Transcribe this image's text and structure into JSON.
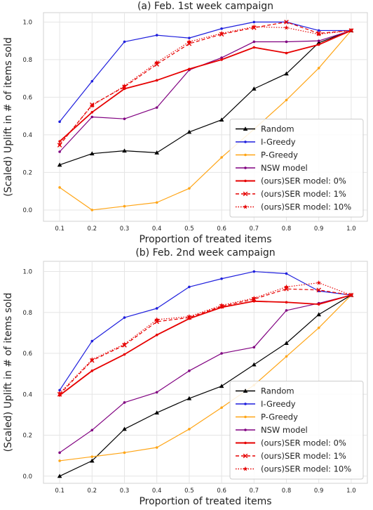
{
  "chart_data": [
    {
      "type": "line",
      "title": "(a) Feb. 1st week campaign",
      "xlabel": "Proportion of treated items",
      "ylabel": "(Scaled) Uplift in # of items sold",
      "x": [
        0.1,
        0.2,
        0.3,
        0.4,
        0.5,
        0.6,
        0.7,
        0.8,
        0.9,
        1.0
      ],
      "xticks": [
        "0.1",
        "0.2",
        "0.3",
        "0.4",
        "0.5",
        "0.6",
        "0.7",
        "0.8",
        "0.9",
        "1.0"
      ],
      "yticks": [
        "0.0",
        "0.2",
        "0.4",
        "0.6",
        "0.8",
        "1.0"
      ],
      "xlim": [
        0.05,
        1.05
      ],
      "ylim": [
        -0.06,
        1.05
      ],
      "grid": true,
      "legend_position": "lower-right",
      "series": [
        {
          "name": "Random",
          "color": "#000000",
          "style": "solid",
          "marker": "triangle",
          "values": [
            0.24,
            0.3,
            0.315,
            0.305,
            0.415,
            0.48,
            0.645,
            0.725,
            0.89,
            0.955
          ]
        },
        {
          "name": "I-Greedy",
          "color": "#1f1fdd",
          "style": "solid",
          "marker": "dot",
          "values": [
            0.47,
            0.685,
            0.895,
            0.93,
            0.915,
            0.965,
            1.0,
            1.0,
            0.955,
            0.955
          ]
        },
        {
          "name": "P-Greedy",
          "color": "#ffa516",
          "style": "solid",
          "marker": "dot",
          "values": [
            0.12,
            0.0,
            0.02,
            0.04,
            0.115,
            0.28,
            0.43,
            0.585,
            0.755,
            0.955
          ]
        },
        {
          "name": "NSW model",
          "color": "#800080",
          "style": "solid",
          "marker": "dot",
          "values": [
            0.31,
            0.495,
            0.485,
            0.545,
            0.745,
            0.81,
            0.895,
            0.895,
            0.9,
            0.955
          ]
        },
        {
          "name": "(ours)SER model: 0%",
          "color": "#e60000",
          "style": "solid",
          "marker": "dot",
          "values": [
            0.365,
            0.52,
            0.645,
            0.69,
            0.75,
            0.8,
            0.865,
            0.835,
            0.88,
            0.955
          ]
        },
        {
          "name": "(ours)SER model: 1%",
          "color": "#e60000",
          "style": "dashed",
          "marker": "x",
          "values": [
            0.345,
            0.56,
            0.655,
            0.775,
            0.885,
            0.935,
            0.97,
            1.0,
            0.94,
            0.955
          ]
        },
        {
          "name": "(ours)SER model: 10%",
          "color": "#e60000",
          "style": "dotted",
          "marker": "star",
          "values": [
            0.35,
            0.555,
            0.66,
            0.785,
            0.895,
            0.94,
            0.975,
            0.97,
            0.935,
            0.955
          ]
        }
      ]
    },
    {
      "type": "line",
      "title": "(b) Feb. 2nd week campaign",
      "xlabel": "Proportion of treated items",
      "ylabel": "(Scaled) Uplift in # of items sold",
      "x": [
        0.1,
        0.2,
        0.3,
        0.4,
        0.5,
        0.6,
        0.7,
        0.8,
        0.9,
        1.0
      ],
      "xticks": [
        "0.1",
        "0.2",
        "0.3",
        "0.4",
        "0.5",
        "0.6",
        "0.7",
        "0.8",
        "0.9",
        "1.0"
      ],
      "yticks": [
        "0.0",
        "0.2",
        "0.4",
        "0.6",
        "0.8",
        "1.0"
      ],
      "xlim": [
        0.05,
        1.05
      ],
      "ylim": [
        -0.035,
        1.05
      ],
      "grid": true,
      "legend_position": "lower-right",
      "series": [
        {
          "name": "Random",
          "color": "#000000",
          "style": "solid",
          "marker": "triangle",
          "values": [
            0.0,
            0.075,
            0.23,
            0.31,
            0.38,
            0.44,
            0.545,
            0.65,
            0.79,
            0.885
          ]
        },
        {
          "name": "I-Greedy",
          "color": "#1f1fdd",
          "style": "solid",
          "marker": "dot",
          "values": [
            0.42,
            0.66,
            0.775,
            0.82,
            0.925,
            0.965,
            1.0,
            0.99,
            0.905,
            0.885
          ]
        },
        {
          "name": "P-Greedy",
          "color": "#ffa516",
          "style": "solid",
          "marker": "dot",
          "values": [
            0.075,
            0.095,
            0.115,
            0.14,
            0.23,
            0.335,
            0.445,
            0.585,
            0.725,
            0.885
          ]
        },
        {
          "name": "NSW model",
          "color": "#800080",
          "style": "solid",
          "marker": "dot",
          "values": [
            0.115,
            0.225,
            0.36,
            0.41,
            0.515,
            0.6,
            0.63,
            0.81,
            0.845,
            0.885
          ]
        },
        {
          "name": "(ours)SER model: 0%",
          "color": "#e60000",
          "style": "solid",
          "marker": "dot",
          "values": [
            0.395,
            0.515,
            0.595,
            0.69,
            0.77,
            0.825,
            0.855,
            0.85,
            0.84,
            0.885
          ]
        },
        {
          "name": "(ours)SER model: 1%",
          "color": "#e60000",
          "style": "dashed",
          "marker": "x",
          "values": [
            0.4,
            0.565,
            0.64,
            0.755,
            0.775,
            0.83,
            0.865,
            0.915,
            0.91,
            0.885
          ]
        },
        {
          "name": "(ours)SER model: 10%",
          "color": "#e60000",
          "style": "dotted",
          "marker": "star",
          "values": [
            0.405,
            0.57,
            0.645,
            0.765,
            0.78,
            0.835,
            0.87,
            0.925,
            0.945,
            0.885
          ]
        }
      ]
    }
  ]
}
